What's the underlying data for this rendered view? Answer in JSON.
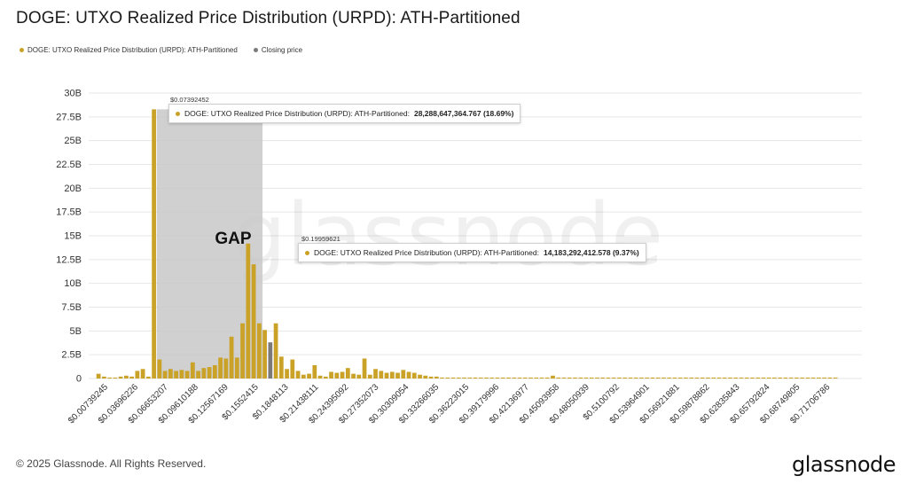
{
  "title": "DOGE: UTXO Realized Price Distribution (URPD): ATH-Partitioned",
  "legend": {
    "series_label": "DOGE: UTXO Realized Price Distribution (URPD): ATH-Partitioned",
    "closing_label": "Closing price"
  },
  "colors": {
    "series": "#c9a227",
    "closing": "#7a7a7a",
    "gap_fill": "#c8c8c8",
    "grid": "#e6e6e6"
  },
  "annotation": {
    "gap_text": "GAP"
  },
  "tooltips": [
    {
      "price": "$0.07392452",
      "label": "DOGE: UTXO Realized Price Distribution (URPD): ATH-Partitioned:",
      "value": "28,288,647,364.767 (18.69%)"
    },
    {
      "price": "$0.19959621",
      "label": "DOGE: UTXO Realized Price Distribution (URPD): ATH-Partitioned:",
      "value": "14,183,292,412.578 (9.37%)"
    }
  ],
  "watermark": "glassnode",
  "footer": {
    "copyright": "© 2025 Glassnode. All Rights Reserved.",
    "logo": "glassnode"
  },
  "chart_data": {
    "type": "bar",
    "title": "DOGE: UTXO Realized Price Distribution (URPD): ATH-Partitioned",
    "x_tick_labels": [
      "$0.00739245",
      "$0.03696226",
      "$0.06653207",
      "$0.09610188",
      "$0.12567169",
      "$0.1552415",
      "$0.1848113",
      "$0.21438111",
      "$0.24395092",
      "$0.27352073",
      "$0.30309054",
      "$0.33266035",
      "$0.36223015",
      "$0.39179996",
      "$0.42136977",
      "$0.45093958",
      "$0.48050939",
      "$0.5100792",
      "$0.53964901",
      "$0.56921881",
      "$0.59878862",
      "$0.62835843",
      "$0.65792824",
      "$0.68749805",
      "$0.71706786"
    ],
    "y_ticks": [
      0,
      2.5,
      5,
      7.5,
      10,
      12.5,
      15,
      17.5,
      20,
      22.5,
      25,
      27.5,
      30
    ],
    "y_tick_labels": [
      "0",
      "2.5B",
      "5B",
      "7.5B",
      "10B",
      "12.5B",
      "15B",
      "17.5B",
      "20B",
      "22.5B",
      "25B",
      "27.5B",
      "30B"
    ],
    "ylim": [
      0,
      30
    ],
    "y_unit": "B",
    "grid": true,
    "legend_position": "top-left",
    "gap_range_bins": [
      11,
      30
    ],
    "closing_price_bin": 32,
    "values": [
      0.5,
      0.2,
      0.1,
      0.1,
      0.2,
      0.3,
      0.2,
      0.8,
      1.0,
      0.2,
      28.29,
      2.0,
      0.8,
      1.0,
      0.8,
      0.9,
      0.8,
      1.7,
      0.8,
      1.1,
      1.2,
      1.4,
      2.2,
      2.1,
      4.4,
      2.2,
      5.8,
      14.18,
      12.0,
      5.8,
      5.1,
      3.8,
      5.8,
      2.3,
      1.0,
      2.0,
      0.8,
      0.4,
      0.5,
      1.4,
      0.3,
      0.2,
      0.7,
      0.6,
      0.7,
      1.1,
      0.5,
      0.4,
      2.1,
      0.4,
      1.0,
      0.8,
      0.6,
      0.7,
      0.6,
      0.9,
      0.7,
      0.6,
      0.4,
      0.3,
      0.2,
      0.2,
      0.1,
      0.1,
      0.1,
      0.1,
      0.1,
      0.1,
      0.1,
      0.1,
      0.1,
      0.1,
      0.1,
      0.1,
      0.1,
      0.1,
      0.1,
      0.1,
      0.1,
      0.1,
      0.1,
      0.1,
      0.3,
      0.1,
      0.1,
      0.1,
      0.1,
      0.1,
      0.1,
      0.1,
      0.1,
      0.1,
      0.1,
      0.1,
      0.1,
      0.1,
      0.1,
      0.1,
      0.1,
      0.1,
      0.1,
      0.1,
      0.1,
      0.1,
      0.1,
      0.1,
      0.1,
      0.1,
      0.1,
      0.1,
      0.1,
      0.1,
      0.1,
      0.1,
      0.1,
      0.1,
      0.1,
      0.1,
      0.1,
      0.1,
      0.1,
      0.1,
      0.1,
      0.1,
      0.1,
      0.1,
      0.1,
      0.1,
      0.1,
      0.1,
      0.1,
      0.1,
      0.1,
      0.1
    ]
  }
}
